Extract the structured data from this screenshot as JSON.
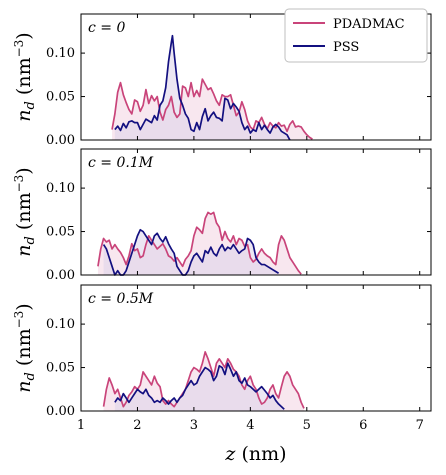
{
  "colors": {
    "PDADMAC": "#c9447a",
    "PSS": "#131080",
    "PDADMAC_fill": "#f3d3e2",
    "PSS_fill": "#ddd3ea"
  },
  "xlabel": "z (nm)",
  "ylabel": "n_d (nm^-3)",
  "legend": {
    "placement": "top-right",
    "entries": [
      "PDADMAC",
      "PSS"
    ]
  },
  "chart_data": [
    {
      "type": "area",
      "panel_label": "c = 0",
      "xlim": [
        1,
        7.2
      ],
      "ylim": [
        0,
        0.145
      ],
      "x_ticks": [
        1,
        2,
        3,
        4,
        5,
        6,
        7
      ],
      "y_ticks": [
        0.0,
        0.05,
        0.1
      ],
      "y_tick_labels": [
        "0.00",
        "0.05",
        "0.10"
      ],
      "x_tick_labels_visible": false,
      "series": [
        {
          "name": "PDADMAC",
          "x": [
            1.55,
            1.6,
            1.65,
            1.7,
            1.75,
            1.8,
            1.85,
            1.9,
            1.95,
            2.0,
            2.05,
            2.1,
            2.15,
            2.2,
            2.25,
            2.3,
            2.35,
            2.4,
            2.45,
            2.5,
            2.55,
            2.6,
            2.65,
            2.7,
            2.75,
            2.8,
            2.85,
            2.9,
            2.95,
            3.0,
            3.05,
            3.1,
            3.15,
            3.2,
            3.25,
            3.3,
            3.35,
            3.4,
            3.45,
            3.5,
            3.55,
            3.6,
            3.65,
            3.7,
            3.75,
            3.8,
            3.85,
            3.9,
            3.95,
            4.0,
            4.05,
            4.1,
            4.15,
            4.2,
            4.25,
            4.3,
            4.35,
            4.4,
            4.45,
            4.5,
            4.55,
            4.6,
            4.65,
            4.7,
            4.75,
            4.8,
            4.85,
            4.9,
            4.95,
            5.0,
            5.05,
            5.1
          ],
          "y": [
            0.012,
            0.03,
            0.055,
            0.066,
            0.052,
            0.043,
            0.035,
            0.03,
            0.046,
            0.044,
            0.033,
            0.04,
            0.058,
            0.042,
            0.051,
            0.045,
            0.05,
            0.032,
            0.023,
            0.035,
            0.04,
            0.05,
            0.032,
            0.026,
            0.03,
            0.062,
            0.06,
            0.05,
            0.066,
            0.05,
            0.057,
            0.05,
            0.07,
            0.064,
            0.058,
            0.06,
            0.053,
            0.045,
            0.04,
            0.052,
            0.05,
            0.05,
            0.052,
            0.04,
            0.028,
            0.032,
            0.044,
            0.035,
            0.022,
            0.015,
            0.012,
            0.022,
            0.02,
            0.026,
            0.018,
            0.013,
            0.02,
            0.016,
            0.014,
            0.02,
            0.016,
            0.017,
            0.01,
            0.018,
            0.022,
            0.015,
            0.016,
            0.015,
            0.01,
            0.006,
            0.003,
            0.001
          ]
        },
        {
          "name": "PSS",
          "x": [
            1.6,
            1.65,
            1.7,
            1.75,
            1.8,
            1.85,
            1.9,
            1.95,
            2.0,
            2.05,
            2.1,
            2.15,
            2.2,
            2.25,
            2.3,
            2.35,
            2.4,
            2.45,
            2.5,
            2.55,
            2.6,
            2.62,
            2.65,
            2.7,
            2.75,
            2.8,
            2.85,
            2.9,
            2.95,
            3.0,
            3.05,
            3.1,
            3.15,
            3.2,
            3.25,
            3.3,
            3.35,
            3.4,
            3.45,
            3.5,
            3.55,
            3.6,
            3.65,
            3.7,
            3.75,
            3.8,
            3.85,
            3.9,
            3.95,
            4.0,
            4.05,
            4.1,
            4.15,
            4.2,
            4.25,
            4.3,
            4.35,
            4.4,
            4.45,
            4.5,
            4.55,
            4.6,
            4.65,
            4.7
          ],
          "y": [
            0.012,
            0.016,
            0.011,
            0.019,
            0.014,
            0.021,
            0.022,
            0.02,
            0.02,
            0.012,
            0.018,
            0.024,
            0.022,
            0.02,
            0.028,
            0.023,
            0.04,
            0.045,
            0.06,
            0.09,
            0.112,
            0.12,
            0.1,
            0.07,
            0.048,
            0.04,
            0.03,
            0.025,
            0.012,
            0.01,
            0.02,
            0.012,
            0.027,
            0.036,
            0.022,
            0.028,
            0.032,
            0.026,
            0.025,
            0.022,
            0.048,
            0.046,
            0.036,
            0.042,
            0.038,
            0.033,
            0.02,
            0.012,
            0.016,
            0.008,
            0.012,
            0.01,
            0.02,
            0.012,
            0.017,
            0.012,
            0.008,
            0.015,
            0.018,
            0.015,
            0.01,
            0.008,
            0.006,
            0.0
          ]
        }
      ]
    },
    {
      "type": "area",
      "panel_label": "c = 0.1M",
      "xlim": [
        1,
        7.2
      ],
      "ylim": [
        0,
        0.145
      ],
      "x_ticks": [
        1,
        2,
        3,
        4,
        5,
        6,
        7
      ],
      "y_ticks": [
        0.0,
        0.05,
        0.1
      ],
      "y_tick_labels": [
        "0.00",
        "0.05",
        "0.10"
      ],
      "x_tick_labels_visible": false,
      "series": [
        {
          "name": "PDADMAC",
          "x": [
            1.3,
            1.35,
            1.4,
            1.45,
            1.5,
            1.55,
            1.6,
            1.65,
            1.7,
            1.75,
            1.8,
            1.85,
            1.9,
            1.95,
            2.0,
            2.05,
            2.1,
            2.15,
            2.2,
            2.25,
            2.3,
            2.35,
            2.4,
            2.45,
            2.5,
            2.55,
            2.6,
            2.65,
            2.7,
            2.75,
            2.8,
            2.85,
            2.9,
            2.95,
            3.0,
            3.05,
            3.1,
            3.15,
            3.2,
            3.25,
            3.3,
            3.35,
            3.4,
            3.45,
            3.5,
            3.55,
            3.6,
            3.65,
            3.7,
            3.75,
            3.8,
            3.85,
            3.9,
            3.95,
            4.0,
            4.05,
            4.1,
            4.15,
            4.2,
            4.25,
            4.3,
            4.35,
            4.4,
            4.45,
            4.5,
            4.55,
            4.6,
            4.65,
            4.7,
            4.75,
            4.8,
            4.85,
            4.9
          ],
          "y": [
            0.01,
            0.03,
            0.042,
            0.038,
            0.04,
            0.03,
            0.035,
            0.03,
            0.026,
            0.02,
            0.012,
            0.022,
            0.036,
            0.028,
            0.03,
            0.02,
            0.022,
            0.035,
            0.045,
            0.04,
            0.035,
            0.03,
            0.033,
            0.036,
            0.03,
            0.022,
            0.02,
            0.016,
            0.02,
            0.015,
            0.01,
            0.018,
            0.022,
            0.028,
            0.045,
            0.055,
            0.052,
            0.048,
            0.065,
            0.072,
            0.07,
            0.072,
            0.06,
            0.055,
            0.04,
            0.05,
            0.042,
            0.038,
            0.045,
            0.035,
            0.042,
            0.04,
            0.033,
            0.035,
            0.02,
            0.015,
            0.018,
            0.025,
            0.03,
            0.025,
            0.022,
            0.02,
            0.015,
            0.012,
            0.035,
            0.045,
            0.04,
            0.03,
            0.02,
            0.015,
            0.01,
            0.005,
            0.001
          ]
        },
        {
          "name": "PSS",
          "x": [
            1.4,
            1.45,
            1.5,
            1.55,
            1.6,
            1.65,
            1.7,
            1.75,
            1.8,
            1.85,
            1.9,
            1.95,
            2.0,
            2.05,
            2.1,
            2.15,
            2.2,
            2.25,
            2.3,
            2.35,
            2.4,
            2.45,
            2.5,
            2.55,
            2.6,
            2.65,
            2.7,
            2.75,
            2.8,
            2.85,
            2.9,
            2.95,
            3.0,
            3.05,
            3.1,
            3.15,
            3.2,
            3.25,
            3.3,
            3.35,
            3.4,
            3.45,
            3.5,
            3.55,
            3.6,
            3.65,
            3.7,
            3.75,
            3.8,
            3.85,
            3.9,
            3.95,
            4.0,
            4.05,
            4.1,
            4.15,
            4.2,
            4.25,
            4.3,
            4.35,
            4.4,
            4.45,
            4.5
          ],
          "y": [
            0.035,
            0.03,
            0.02,
            0.01,
            0.0,
            0.005,
            0.0,
            0.0,
            0.005,
            0.015,
            0.025,
            0.035,
            0.045,
            0.052,
            0.05,
            0.045,
            0.04,
            0.035,
            0.045,
            0.048,
            0.042,
            0.038,
            0.044,
            0.036,
            0.03,
            0.025,
            0.01,
            0.005,
            0.0,
            0.0,
            0.005,
            0.015,
            0.022,
            0.025,
            0.02,
            0.015,
            0.028,
            0.025,
            0.032,
            0.025,
            0.022,
            0.03,
            0.035,
            0.028,
            0.032,
            0.03,
            0.035,
            0.03,
            0.025,
            0.028,
            0.03,
            0.042,
            0.04,
            0.035,
            0.02,
            0.015,
            0.012,
            0.012,
            0.01,
            0.008,
            0.006,
            0.004,
            0.002
          ]
        }
      ]
    },
    {
      "type": "area",
      "panel_label": "c = 0.5M",
      "xlim": [
        1,
        7.2
      ],
      "ylim": [
        0,
        0.145
      ],
      "x_ticks": [
        1,
        2,
        3,
        4,
        5,
        6,
        7
      ],
      "y_ticks": [
        0.0,
        0.05,
        0.1
      ],
      "y_tick_labels": [
        "0.00",
        "0.05",
        "0.10"
      ],
      "x_tick_labels": [
        "1",
        "2",
        "3",
        "4",
        "5",
        "6",
        "7"
      ],
      "x_tick_labels_visible": true,
      "series": [
        {
          "name": "PDADMAC",
          "x": [
            1.4,
            1.45,
            1.5,
            1.55,
            1.6,
            1.65,
            1.7,
            1.75,
            1.8,
            1.85,
            1.9,
            1.95,
            2.0,
            2.05,
            2.1,
            2.15,
            2.2,
            2.25,
            2.3,
            2.35,
            2.4,
            2.45,
            2.5,
            2.55,
            2.6,
            2.65,
            2.7,
            2.75,
            2.8,
            2.85,
            2.9,
            2.95,
            3.0,
            3.05,
            3.1,
            3.15,
            3.2,
            3.25,
            3.3,
            3.35,
            3.4,
            3.45,
            3.5,
            3.55,
            3.6,
            3.65,
            3.7,
            3.75,
            3.8,
            3.85,
            3.9,
            3.95,
            4.0,
            4.05,
            4.1,
            4.15,
            4.2,
            4.25,
            4.3,
            4.35,
            4.4,
            4.45,
            4.5,
            4.55,
            4.6,
            4.65,
            4.7,
            4.75,
            4.8,
            4.85,
            4.9,
            4.95
          ],
          "y": [
            0.005,
            0.025,
            0.038,
            0.03,
            0.02,
            0.025,
            0.015,
            0.005,
            0.01,
            0.018,
            0.022,
            0.028,
            0.025,
            0.03,
            0.045,
            0.04,
            0.035,
            0.03,
            0.04,
            0.032,
            0.028,
            0.012,
            0.008,
            0.012,
            0.008,
            0.005,
            0.01,
            0.015,
            0.02,
            0.025,
            0.035,
            0.045,
            0.05,
            0.048,
            0.045,
            0.055,
            0.068,
            0.06,
            0.05,
            0.04,
            0.055,
            0.06,
            0.055,
            0.05,
            0.06,
            0.055,
            0.048,
            0.045,
            0.04,
            0.03,
            0.025,
            0.035,
            0.04,
            0.03,
            0.025,
            0.015,
            0.008,
            0.01,
            0.015,
            0.025,
            0.03,
            0.02,
            0.015,
            0.028,
            0.04,
            0.045,
            0.04,
            0.03,
            0.025,
            0.02,
            0.01,
            0.003
          ]
        },
        {
          "name": "PSS",
          "x": [
            1.6,
            1.65,
            1.7,
            1.75,
            1.8,
            1.85,
            1.9,
            1.95,
            2.0,
            2.05,
            2.1,
            2.15,
            2.2,
            2.25,
            2.3,
            2.35,
            2.4,
            2.45,
            2.5,
            2.55,
            2.6,
            2.65,
            2.7,
            2.75,
            2.8,
            2.85,
            2.9,
            2.95,
            3.0,
            3.05,
            3.1,
            3.15,
            3.2,
            3.25,
            3.3,
            3.35,
            3.4,
            3.45,
            3.5,
            3.55,
            3.6,
            3.65,
            3.7,
            3.75,
            3.8,
            3.85,
            3.9,
            3.95,
            4.0,
            4.05,
            4.1,
            4.15,
            4.2,
            4.25,
            4.3,
            4.35,
            4.4,
            4.45,
            4.5,
            4.55,
            4.6
          ],
          "y": [
            0.01,
            0.015,
            0.012,
            0.02,
            0.015,
            0.01,
            0.015,
            0.02,
            0.025,
            0.022,
            0.02,
            0.025,
            0.018,
            0.015,
            0.01,
            0.012,
            0.01,
            0.015,
            0.012,
            0.008,
            0.012,
            0.015,
            0.01,
            0.015,
            0.018,
            0.025,
            0.03,
            0.035,
            0.03,
            0.032,
            0.04,
            0.045,
            0.05,
            0.048,
            0.045,
            0.035,
            0.04,
            0.052,
            0.05,
            0.042,
            0.055,
            0.048,
            0.04,
            0.045,
            0.035,
            0.032,
            0.038,
            0.03,
            0.028,
            0.025,
            0.022,
            0.025,
            0.028,
            0.024,
            0.02,
            0.015,
            0.018,
            0.012,
            0.008,
            0.005,
            0.002
          ]
        }
      ]
    }
  ]
}
